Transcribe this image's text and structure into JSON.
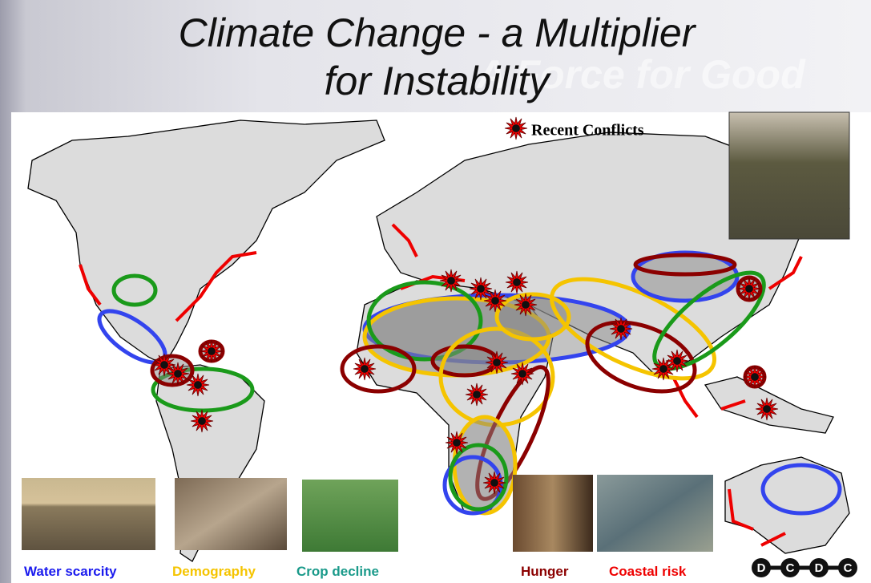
{
  "header": {
    "title": [
      "Climate Change - a Multiplier",
      "for Instability"
    ],
    "watermark": "A Force for Good"
  },
  "legend": {
    "label": "Recent Conflicts"
  },
  "captions": [
    "Water scarcity",
    "Demography",
    "Crop decline",
    "Hunger",
    "Coastal risk"
  ],
  "logo": {
    "letters": [
      "D",
      "C",
      "D",
      "C"
    ]
  }
}
